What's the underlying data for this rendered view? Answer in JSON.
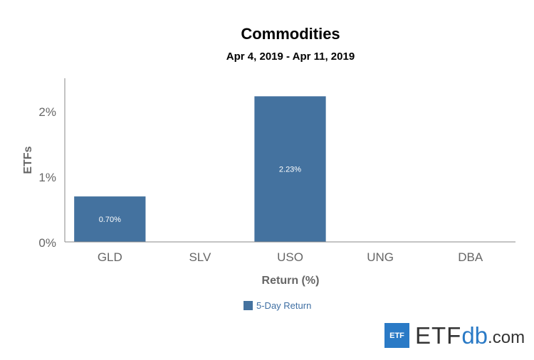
{
  "chart_data": {
    "type": "bar",
    "title": "Commodities",
    "subtitle": "Apr 4, 2019 - Apr 11, 2019",
    "categories": [
      "GLD",
      "SLV",
      "USO",
      "UNG",
      "DBA"
    ],
    "series": [
      {
        "name": "5-Day Return",
        "values": [
          0.7,
          null,
          2.23,
          null,
          null
        ],
        "labels": [
          "0.70%",
          "",
          "2.23%",
          "",
          ""
        ],
        "color": "#44729f"
      }
    ],
    "xlabel": "Return (%)",
    "ylabel": "ETFs",
    "ylim": [
      0,
      2.5
    ],
    "yticks": [
      0,
      1,
      2
    ],
    "ytick_labels": [
      "0%",
      "1%",
      "2%"
    ],
    "grid": false,
    "legend": "bottom-center"
  },
  "logo": {
    "box": "ETF",
    "etf": "ETF",
    "db": "db",
    "com": ".com"
  }
}
